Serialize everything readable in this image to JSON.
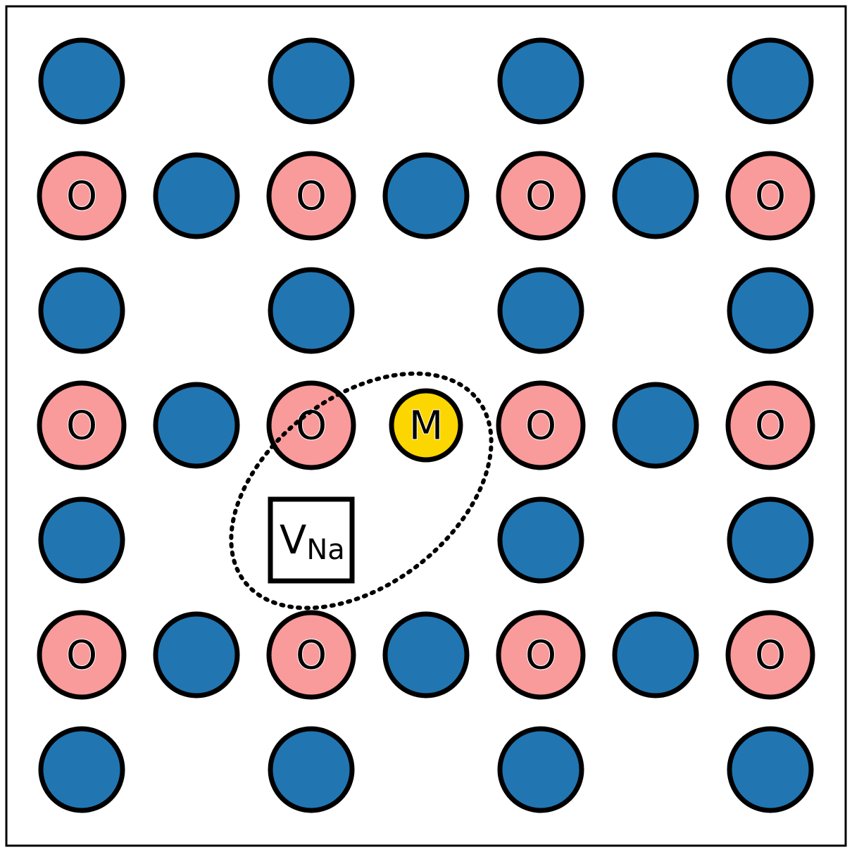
{
  "diagram": {
    "colors": {
      "host_atom": "#2176b2",
      "oxygen": "#fa9b9b",
      "dopant": "#fcd600",
      "outline": "#000000",
      "background": "#ffffff"
    },
    "rows": [
      [
        "N",
        "_",
        "N",
        "_",
        "N",
        "_",
        "N"
      ],
      [
        "O",
        "N",
        "O",
        "N",
        "O",
        "N",
        "O"
      ],
      [
        "N",
        "_",
        "N",
        "_",
        "N",
        "_",
        "N"
      ],
      [
        "O",
        "N",
        "O",
        "M",
        "O",
        "N",
        "O"
      ],
      [
        "N",
        "_",
        "V",
        "_",
        "N",
        "_",
        "N"
      ],
      [
        "O",
        "N",
        "O",
        "N",
        "O",
        "N",
        "O"
      ],
      [
        "N",
        "_",
        "N",
        "_",
        "N",
        "_",
        "N"
      ]
    ],
    "labels": {
      "oxygen": "O",
      "dopant": "M",
      "vacancy_main": "V",
      "vacancy_sub": "Na"
    },
    "defect_complex": {
      "members": [
        "M",
        "V"
      ],
      "outline": "dotted ellipse"
    }
  }
}
